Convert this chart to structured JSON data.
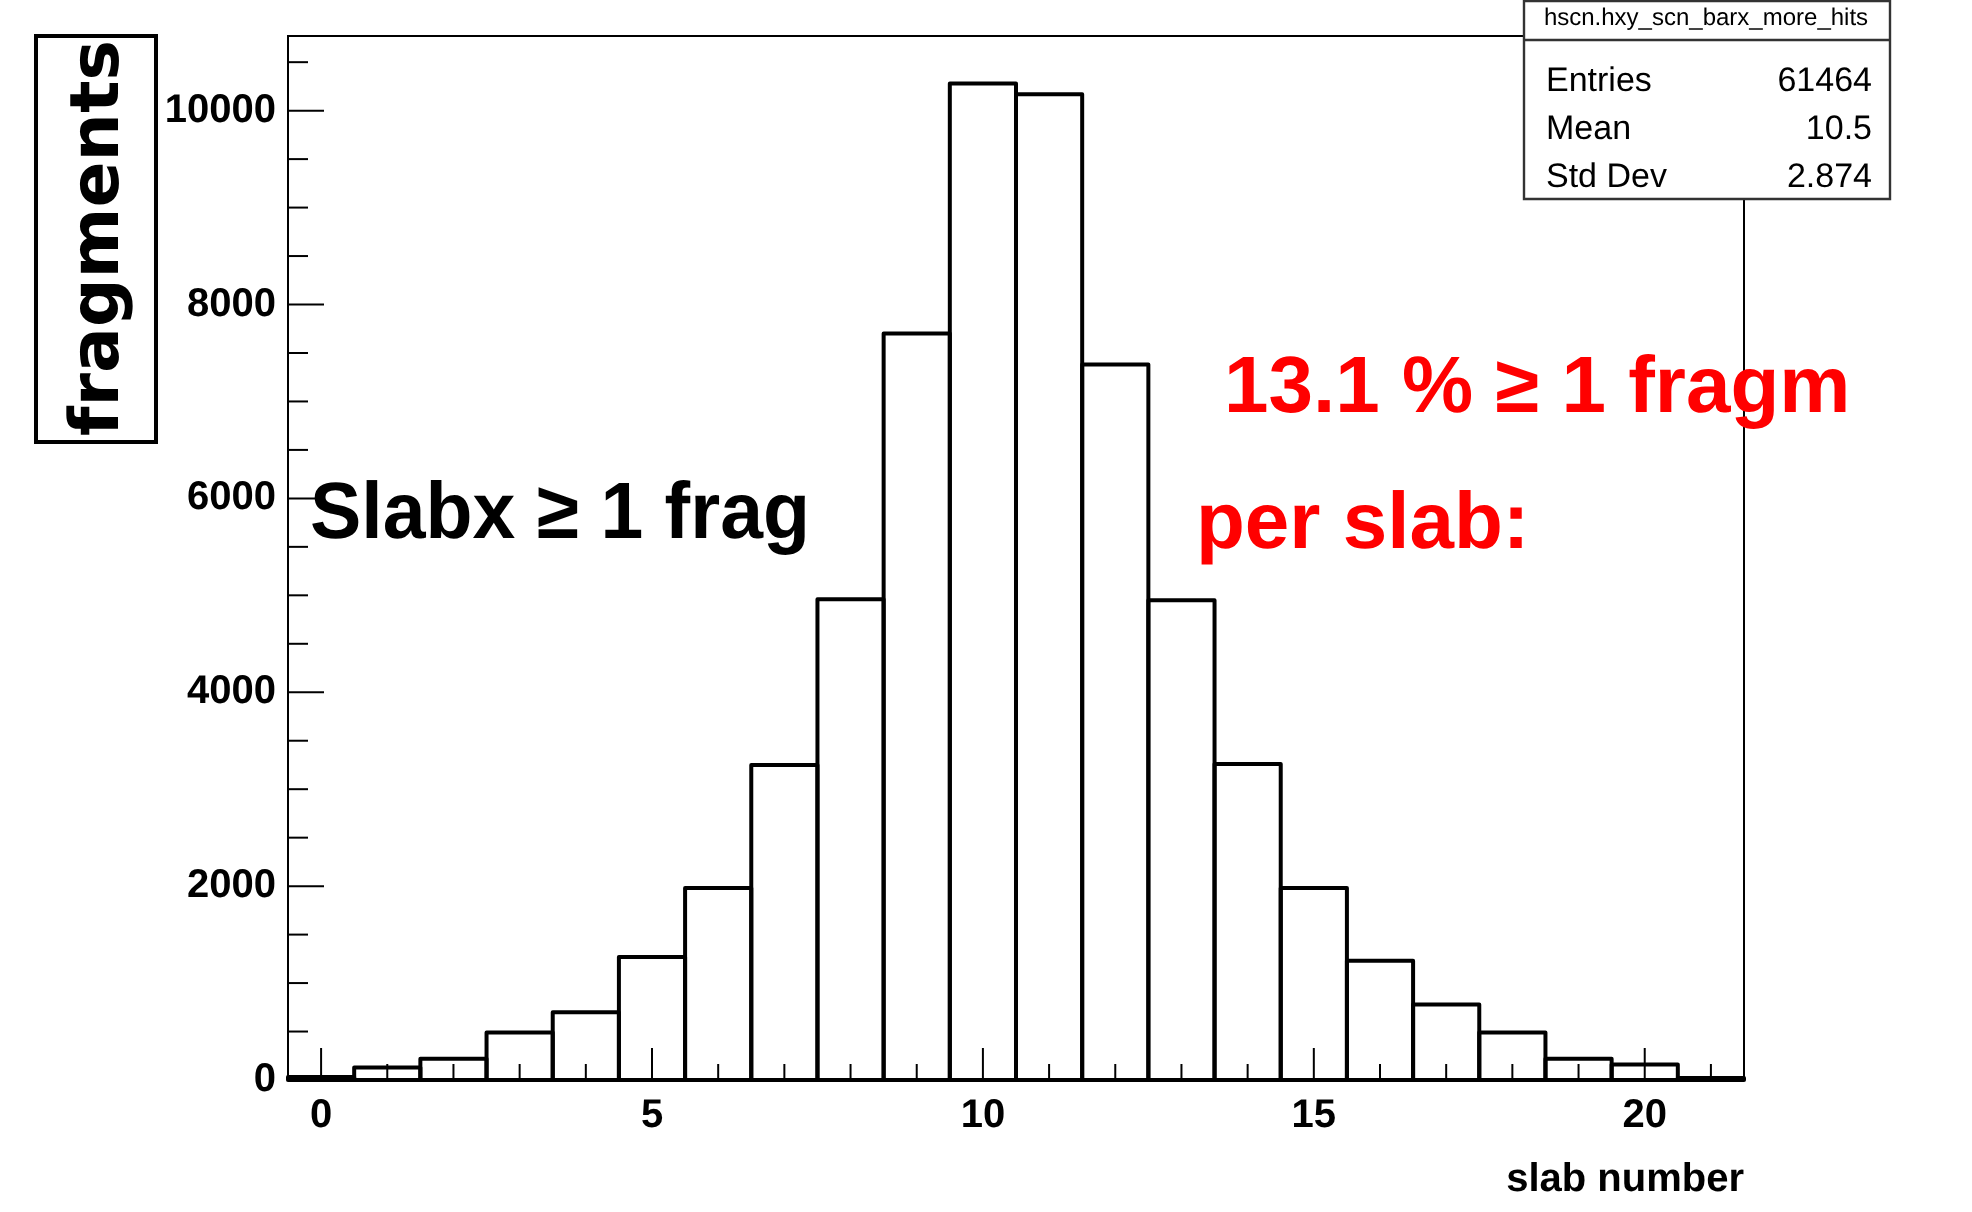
{
  "chart_data": {
    "type": "histogram",
    "title": "hscn.hxy_scn_barx_more_hits",
    "xlabel": "slab number",
    "ylabel": "fragments",
    "bins": [
      -0.5,
      0.5,
      1.5,
      2.5,
      3.5,
      4.5,
      5.5,
      6.5,
      7.5,
      8.5,
      9.5,
      10.5,
      11.5,
      12.5,
      13.5,
      14.5,
      15.5,
      16.5,
      17.5,
      18.5,
      19.5,
      20.5,
      21.5
    ],
    "values": [
      30,
      130,
      220,
      490,
      700,
      1270,
      1980,
      3250,
      4960,
      7700,
      10280,
      10170,
      7380,
      4950,
      3260,
      1980,
      1230,
      780,
      490,
      220,
      160,
      20
    ],
    "color": "#000000",
    "xlim": [
      -0.5,
      21.5
    ],
    "ylim": [
      0,
      10770
    ],
    "xticks": [
      0,
      {
        "value": 1,
        "label": null
      },
      {
        "value": 2,
        "label": null
      },
      {
        "value": 3,
        "label": null
      },
      {
        "value": 4,
        "label": null
      },
      5,
      {
        "value": 6,
        "label": null
      },
      {
        "value": 7,
        "label": null
      },
      {
        "value": 8,
        "label": null
      },
      {
        "value": 9,
        "label": null
      },
      10,
      {
        "value": 11,
        "label": null
      },
      {
        "value": 12,
        "label": null
      },
      {
        "value": 13,
        "label": null
      },
      {
        "value": 14,
        "label": null
      },
      15,
      {
        "value": 16,
        "label": null
      },
      {
        "value": 17,
        "label": null
      },
      {
        "value": 18,
        "label": null
      },
      {
        "value": 19,
        "label": null
      },
      20,
      {
        "value": 21,
        "label": null
      }
    ],
    "yticks": [
      0,
      {
        "value": 500,
        "label": null
      },
      {
        "value": 1000,
        "label": null
      },
      {
        "value": 1500,
        "label": null
      },
      2000,
      {
        "value": 2500,
        "label": null
      },
      {
        "value": 3000,
        "label": null
      },
      {
        "value": 3500,
        "label": null
      },
      4000,
      {
        "value": 4500,
        "label": null
      },
      {
        "value": 5000,
        "label": null
      },
      {
        "value": 5500,
        "label": null
      },
      6000,
      {
        "value": 6500,
        "label": null
      },
      {
        "value": 7000,
        "label": null
      },
      {
        "value": 7500,
        "label": null
      },
      8000,
      {
        "value": 8500,
        "label": null
      },
      {
        "value": 9000,
        "label": null
      },
      {
        "value": 9500,
        "label": null
      },
      10000,
      {
        "value": 10500,
        "label": null
      }
    ],
    "grid": false,
    "legend": false,
    "annotations": [
      "Entries",
      "61464",
      "Mean",
      "10.5",
      "Std Dev",
      "2.874",
      "Slabx ≥ 1 frag",
      "13.1 % ≥ 1 fragm",
      "per slab:"
    ]
  }
}
